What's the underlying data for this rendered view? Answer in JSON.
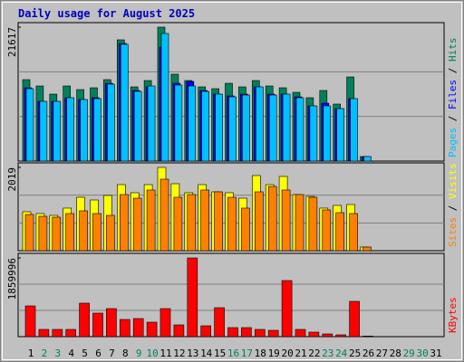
{
  "chart_data": [
    {
      "type": "bar",
      "title": "Daily usage for August 2025",
      "legend_separator": " / ",
      "ylim": [
        0,
        21617
      ],
      "yticks": [
        21617
      ],
      "grid_divisions": 3,
      "series": [
        {
          "name": "Hits",
          "color": "#00805c",
          "values": [
            13145,
            12123,
            10808,
            12123,
            11539,
            11831,
            13145,
            19572,
            11977,
            12999,
            21617,
            14022,
            12999,
            11977,
            11685,
            12561,
            11977,
            12999,
            12123,
            11831,
            11101,
            10224,
            11393,
            9202,
            13584,
            730,
            0,
            0,
            0,
            0,
            0
          ]
        },
        {
          "name": "Files",
          "color": "#0000ff",
          "values": [
            11831,
            9640,
            9640,
            10224,
            9932,
            10224,
            12561,
            18988,
            11393,
            11977,
            18404,
            12561,
            12853,
            11393,
            10808,
            10516,
            10808,
            11977,
            10808,
            10808,
            10370,
            8910,
            9348,
            8471,
            10078,
            730,
            0,
            0,
            0,
            0,
            0
          ]
        },
        {
          "name": "Pages",
          "color": "#00c0ff",
          "values": [
            11685,
            9640,
            9640,
            10224,
            9932,
            10078,
            12415,
            18842,
            11247,
            12123,
            20594,
            12269,
            12123,
            11247,
            10808,
            10370,
            10662,
            11977,
            10662,
            10808,
            10224,
            8910,
            8910,
            8471,
            10078,
            730,
            0,
            0,
            0,
            0,
            0
          ]
        }
      ]
    },
    {
      "type": "bar",
      "legend_separator": " / ",
      "ylim": [
        0,
        2019
      ],
      "yticks": [
        2019
      ],
      "grid_divisions": 3,
      "series": [
        {
          "name": "Visits",
          "color": "#ffff00",
          "values": [
            944,
            900,
            856,
            1032,
            1295,
            1229,
            1339,
            1602,
            1405,
            1602,
            2019,
            1624,
            1405,
            1602,
            1427,
            1405,
            1273,
            1822,
            1602,
            1800,
            1361,
            1317,
            1032,
            1098,
            1119,
            88,
            0,
            0,
            0,
            0,
            0
          ]
        },
        {
          "name": "Sites",
          "color": "#ff8000",
          "values": [
            878,
            834,
            812,
            900,
            966,
            900,
            856,
            1361,
            1273,
            1471,
            1734,
            1295,
            1361,
            1471,
            1427,
            1295,
            1032,
            1427,
            1558,
            1471,
            1361,
            1295,
            988,
            922,
            900,
            88,
            0,
            0,
            0,
            0,
            0
          ]
        }
      ]
    },
    {
      "type": "bar",
      "ylim": [
        0,
        1859996
      ],
      "yticks": [
        1859996
      ],
      "grid_divisions": 3,
      "series": [
        {
          "name": "KBytes",
          "color": "#ff0000",
          "values": [
            726886,
            171032,
            171032,
            171032,
            791023,
            555854,
            662749,
            406201,
            427580,
            342064,
            662749,
            277927,
            1859996,
            256548,
            684128,
            213790,
            213790,
            171032,
            149653,
            1325498,
            171032,
            106895,
            64137,
            42758,
            833781,
            15000,
            0,
            0,
            0,
            0,
            0
          ]
        }
      ],
      "categories": [
        "1",
        "2",
        "3",
        "4",
        "5",
        "6",
        "7",
        "8",
        "9",
        "10",
        "11",
        "12",
        "13",
        "14",
        "15",
        "16",
        "17",
        "18",
        "19",
        "20",
        "21",
        "22",
        "23",
        "24",
        "25",
        "26",
        "27",
        "28",
        "29",
        "30",
        "31"
      ],
      "category_colors": [
        "#000000",
        "#00805c",
        "#00805c",
        "#000000",
        "#000000",
        "#000000",
        "#000000",
        "#000000",
        "#00805c",
        "#00805c",
        "#000000",
        "#000000",
        "#000000",
        "#000000",
        "#000000",
        "#00805c",
        "#00805c",
        "#000000",
        "#000000",
        "#000000",
        "#000000",
        "#000000",
        "#00805c",
        "#00805c",
        "#000000",
        "#000000",
        "#000000",
        "#000000",
        "#00805c",
        "#00805c",
        "#000000"
      ]
    }
  ]
}
